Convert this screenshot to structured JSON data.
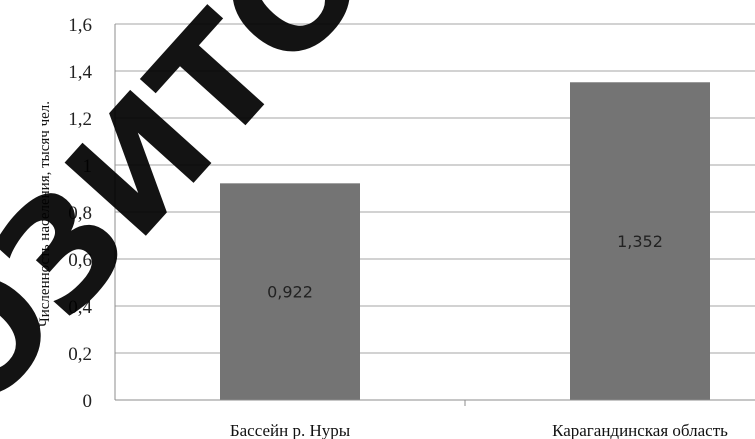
{
  "chart_data": {
    "type": "bar",
    "categories": [
      "Бассейн р. Нуры",
      "Карагандинская область"
    ],
    "values": [
      0.922,
      1.352
    ],
    "data_labels": [
      "0,922",
      "1,352"
    ],
    "title": "",
    "xlabel": "",
    "ylabel": "Численность населения, тысяч чел.",
    "ylim": [
      0,
      1.6
    ],
    "yticks": [
      "0",
      "0,2",
      "0,4",
      "0,6",
      "0,8",
      "1",
      "1,2",
      "1,4",
      "1,6"
    ],
    "grid": true,
    "legend": "none",
    "colors": {
      "bar": "#747474",
      "grid": "#a6a6a6",
      "axis": "#8c8c8c"
    }
  },
  "watermark": {
    "text": "ОЗИТО"
  }
}
